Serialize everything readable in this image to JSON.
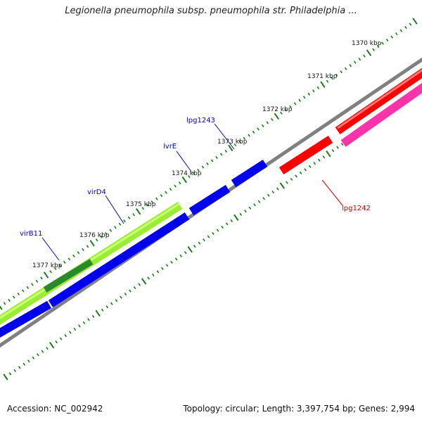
{
  "title": "Legionella pneumophila subsp. pneumophila str. Philadelphia ...",
  "ruler_ticks": [
    "1370 kbp",
    "1371 kbp",
    "1372 kbp",
    "1373 kbp",
    "1374 kbp",
    "1375 kbp",
    "1376 kbp",
    "1377 kbp"
  ],
  "gene_labels": {
    "lpg1243": "lpg1243",
    "lvrE": "lvrE",
    "virD4": "virD4",
    "virB11": "virB11",
    "lpg1242": "lpg1242"
  },
  "colors": {
    "backbone": "#808080",
    "forward_genes": "#0000ee",
    "reverse_genes": "#ff0000",
    "pink_feature": "#ff33aa",
    "green_feature": "#99ee33",
    "dark_green_feature": "#2a8a2a",
    "tick_dots": "#1a7a1a",
    "label_blue": "#0000cc",
    "label_red": "#cc0000"
  },
  "footer": {
    "accession": "Accession: NC_002942",
    "summary": "Topology: circular; Length: 3,397,754 bp; Genes: 2,994"
  }
}
